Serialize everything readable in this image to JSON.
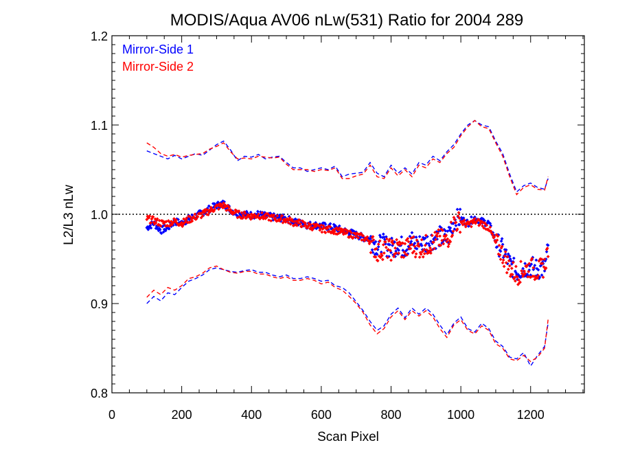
{
  "chart_data": {
    "type": "scatter",
    "title": "MODIS/Aqua AV06 nLw(531) Ratio for 2004 289",
    "xlabel": "Scan Pixel",
    "ylabel": "L2/L3 nLw",
    "xlim": [
      0,
      1354
    ],
    "ylim": [
      0.8,
      1.2
    ],
    "x_ticks": [
      0,
      200,
      400,
      600,
      800,
      1000,
      1200
    ],
    "x_tick_labels": [
      "0",
      "200",
      "400",
      "600",
      "800",
      "1000",
      "1200"
    ],
    "y_ticks": [
      0.8,
      0.9,
      1.0,
      1.1,
      1.2
    ],
    "y_tick_labels": [
      "0.8",
      "0.9",
      "1.0",
      "1.1",
      "1.2"
    ],
    "grid": false,
    "legend_position": "top-left",
    "reference_line": {
      "y": 1.0,
      "style": "dotted",
      "color": "#000000"
    },
    "series": [
      {
        "name": "Mirror-Side 1",
        "color": "#0000ff",
        "ratio": {
          "x": [
            100,
            120,
            140,
            160,
            180,
            200,
            220,
            240,
            260,
            280,
            300,
            320,
            340,
            360,
            380,
            400,
            420,
            440,
            460,
            480,
            500,
            520,
            540,
            560,
            580,
            600,
            620,
            640,
            660,
            680,
            700,
            720,
            740,
            760,
            780,
            800,
            820,
            840,
            860,
            880,
            900,
            920,
            940,
            960,
            980,
            1000,
            1020,
            1040,
            1060,
            1080,
            1100,
            1120,
            1140,
            1160,
            1180,
            1200,
            1220,
            1240,
            1250
          ],
          "y": [
            0.985,
            0.99,
            0.982,
            0.985,
            0.992,
            0.99,
            0.995,
            0.998,
            1.002,
            1.006,
            1.01,
            1.012,
            1.005,
            1.001,
            1.0,
            0.999,
            1.0,
            0.998,
            0.997,
            0.996,
            0.995,
            0.992,
            0.99,
            0.988,
            0.988,
            0.987,
            0.986,
            0.985,
            0.982,
            0.98,
            0.977,
            0.974,
            0.972,
            0.965,
            0.966,
            0.962,
            0.966,
            0.962,
            0.97,
            0.966,
            0.968,
            0.972,
            0.975,
            0.972,
            0.993,
            0.995,
            0.99,
            0.996,
            0.992,
            0.99,
            0.97,
            0.96,
            0.945,
            0.935,
            0.94,
            0.942,
            0.938,
            0.94,
            0.96
          ]
        },
        "upper": {
          "x": [
            100,
            120,
            140,
            160,
            180,
            200,
            220,
            240,
            260,
            280,
            300,
            320,
            340,
            360,
            380,
            400,
            420,
            440,
            460,
            480,
            500,
            520,
            540,
            560,
            580,
            600,
            620,
            640,
            660,
            680,
            700,
            720,
            740,
            760,
            780,
            800,
            820,
            840,
            860,
            880,
            900,
            920,
            940,
            960,
            980,
            1000,
            1020,
            1040,
            1060,
            1080,
            1100,
            1120,
            1140,
            1160,
            1180,
            1200,
            1220,
            1240,
            1250
          ],
          "y": [
            1.071,
            1.068,
            1.065,
            1.062,
            1.066,
            1.062,
            1.065,
            1.068,
            1.066,
            1.072,
            1.078,
            1.082,
            1.072,
            1.06,
            1.065,
            1.064,
            1.067,
            1.062,
            1.064,
            1.065,
            1.058,
            1.052,
            1.052,
            1.048,
            1.05,
            1.052,
            1.05,
            1.054,
            1.042,
            1.045,
            1.046,
            1.047,
            1.058,
            1.046,
            1.042,
            1.055,
            1.046,
            1.052,
            1.045,
            1.058,
            1.055,
            1.065,
            1.06,
            1.07,
            1.078,
            1.09,
            1.1,
            1.105,
            1.1,
            1.098,
            1.082,
            1.068,
            1.045,
            1.025,
            1.032,
            1.035,
            1.03,
            1.028,
            1.04
          ]
        },
        "lower": {
          "x": [
            100,
            120,
            140,
            160,
            180,
            200,
            220,
            240,
            260,
            280,
            300,
            320,
            340,
            360,
            380,
            400,
            420,
            440,
            460,
            480,
            500,
            520,
            540,
            560,
            580,
            600,
            620,
            640,
            660,
            680,
            700,
            720,
            740,
            760,
            780,
            800,
            820,
            840,
            860,
            880,
            900,
            920,
            940,
            960,
            980,
            1000,
            1020,
            1040,
            1060,
            1080,
            1100,
            1120,
            1140,
            1160,
            1180,
            1200,
            1220,
            1240,
            1250
          ],
          "y": [
            0.9,
            0.908,
            0.903,
            0.912,
            0.91,
            0.918,
            0.925,
            0.928,
            0.932,
            0.938,
            0.94,
            0.938,
            0.936,
            0.935,
            0.937,
            0.938,
            0.935,
            0.935,
            0.932,
            0.93,
            0.932,
            0.928,
            0.928,
            0.93,
            0.928,
            0.925,
            0.926,
            0.92,
            0.918,
            0.912,
            0.902,
            0.892,
            0.88,
            0.87,
            0.875,
            0.888,
            0.895,
            0.884,
            0.895,
            0.888,
            0.895,
            0.888,
            0.876,
            0.865,
            0.878,
            0.885,
            0.872,
            0.868,
            0.878,
            0.872,
            0.858,
            0.852,
            0.84,
            0.838,
            0.845,
            0.83,
            0.842,
            0.852,
            0.878
          ]
        }
      },
      {
        "name": "Mirror-Side 2",
        "color": "#ff0000",
        "ratio": {
          "x": [
            100,
            120,
            140,
            160,
            180,
            200,
            220,
            240,
            260,
            280,
            300,
            320,
            340,
            360,
            380,
            400,
            420,
            440,
            460,
            480,
            500,
            520,
            540,
            560,
            580,
            600,
            620,
            640,
            660,
            680,
            700,
            720,
            740,
            760,
            780,
            800,
            820,
            840,
            860,
            880,
            900,
            920,
            940,
            960,
            980,
            1000,
            1020,
            1040,
            1060,
            1080,
            1100,
            1120,
            1140,
            1160,
            1180,
            1200,
            1220,
            1240,
            1250
          ],
          "y": [
            0.995,
            0.993,
            0.99,
            0.99,
            0.992,
            0.99,
            0.994,
            0.997,
            1.0,
            1.004,
            1.008,
            1.01,
            1.004,
            1.0,
            0.999,
            0.998,
            0.999,
            0.997,
            0.996,
            0.995,
            0.994,
            0.991,
            0.99,
            0.987,
            0.986,
            0.984,
            0.983,
            0.982,
            0.98,
            0.978,
            0.976,
            0.974,
            0.97,
            0.958,
            0.962,
            0.96,
            0.963,
            0.96,
            0.966,
            0.962,
            0.965,
            0.968,
            0.972,
            0.97,
            0.99,
            0.992,
            0.988,
            0.992,
            0.99,
            0.985,
            0.968,
            0.955,
            0.94,
            0.932,
            0.938,
            0.94,
            0.936,
            0.942,
            0.962
          ]
        },
        "upper": {
          "x": [
            100,
            120,
            140,
            160,
            180,
            200,
            220,
            240,
            260,
            280,
            300,
            320,
            340,
            360,
            380,
            400,
            420,
            440,
            460,
            480,
            500,
            520,
            540,
            560,
            580,
            600,
            620,
            640,
            660,
            680,
            700,
            720,
            740,
            760,
            780,
            800,
            820,
            840,
            860,
            880,
            900,
            920,
            940,
            960,
            980,
            1000,
            1020,
            1040,
            1060,
            1080,
            1100,
            1120,
            1140,
            1160,
            1180,
            1200,
            1220,
            1240,
            1250
          ],
          "y": [
            1.08,
            1.075,
            1.068,
            1.065,
            1.067,
            1.064,
            1.066,
            1.067,
            1.068,
            1.073,
            1.076,
            1.08,
            1.07,
            1.062,
            1.063,
            1.062,
            1.065,
            1.064,
            1.063,
            1.064,
            1.056,
            1.05,
            1.05,
            1.05,
            1.048,
            1.05,
            1.049,
            1.052,
            1.04,
            1.04,
            1.043,
            1.045,
            1.055,
            1.042,
            1.04,
            1.052,
            1.043,
            1.05,
            1.042,
            1.055,
            1.052,
            1.062,
            1.058,
            1.068,
            1.075,
            1.088,
            1.098,
            1.105,
            1.098,
            1.096,
            1.08,
            1.065,
            1.042,
            1.022,
            1.03,
            1.033,
            1.028,
            1.027,
            1.042
          ]
        },
        "lower": {
          "x": [
            100,
            120,
            140,
            160,
            180,
            200,
            220,
            240,
            260,
            280,
            300,
            320,
            340,
            360,
            380,
            400,
            420,
            440,
            460,
            480,
            500,
            520,
            540,
            560,
            580,
            600,
            620,
            640,
            660,
            680,
            700,
            720,
            740,
            760,
            780,
            800,
            820,
            840,
            860,
            880,
            900,
            920,
            940,
            960,
            980,
            1000,
            1020,
            1040,
            1060,
            1080,
            1100,
            1120,
            1140,
            1160,
            1180,
            1200,
            1220,
            1240,
            1250
          ],
          "y": [
            0.907,
            0.915,
            0.91,
            0.918,
            0.915,
            0.92,
            0.928,
            0.93,
            0.934,
            0.94,
            0.942,
            0.938,
            0.935,
            0.934,
            0.936,
            0.936,
            0.933,
            0.933,
            0.93,
            0.928,
            0.93,
            0.926,
            0.926,
            0.928,
            0.926,
            0.922,
            0.924,
            0.918,
            0.915,
            0.908,
            0.9,
            0.89,
            0.876,
            0.866,
            0.872,
            0.885,
            0.892,
            0.882,
            0.892,
            0.886,
            0.892,
            0.885,
            0.872,
            0.862,
            0.876,
            0.882,
            0.87,
            0.866,
            0.875,
            0.87,
            0.855,
            0.85,
            0.838,
            0.836,
            0.842,
            0.835,
            0.84,
            0.85,
            0.882
          ]
        }
      }
    ]
  }
}
